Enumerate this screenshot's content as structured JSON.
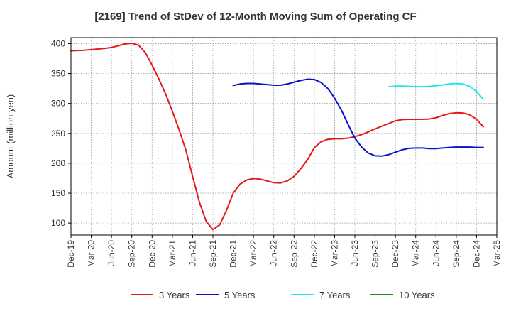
{
  "chart_data": {
    "type": "line",
    "title": "[2169]  Trend of StDev of 12-Month Moving Sum of Operating CF",
    "ylabel": "Amount (million yen)",
    "xlabel": "",
    "ylim": [
      80,
      410
    ],
    "yticks": [
      100,
      150,
      200,
      250,
      300,
      350,
      400
    ],
    "x_tick_labels": [
      "Dec-19",
      "Mar-20",
      "Jun-20",
      "Sep-20",
      "Dec-20",
      "Mar-21",
      "Jun-21",
      "Sep-21",
      "Dec-21",
      "Mar-22",
      "Jun-22",
      "Sep-22",
      "Dec-22",
      "Mar-23",
      "Jun-23",
      "Sep-23",
      "Dec-23",
      "Mar-24",
      "Jun-24",
      "Sep-24",
      "Dec-24",
      "Mar-25"
    ],
    "grid": true,
    "legend_position": "bottom",
    "series": [
      {
        "name": "3 Years",
        "color": "#e31a1c",
        "points": [
          [
            "Dec-19",
            388
          ],
          [
            "Jan-20",
            388.5
          ],
          [
            "Feb-20",
            389
          ],
          [
            "Mar-20",
            390
          ],
          [
            "Apr-20",
            391
          ],
          [
            "May-20",
            392
          ],
          [
            "Jun-20",
            393.5
          ],
          [
            "Jul-20",
            396.5
          ],
          [
            "Aug-20",
            399.5
          ],
          [
            "Sep-20",
            400.5
          ],
          [
            "Oct-20",
            397.5
          ],
          [
            "Nov-20",
            385
          ],
          [
            "Dec-20",
            364
          ],
          [
            "Jan-21",
            341
          ],
          [
            "Feb-21",
            316
          ],
          [
            "Mar-21",
            287
          ],
          [
            "Apr-21",
            256
          ],
          [
            "May-21",
            222
          ],
          [
            "Jun-21",
            178
          ],
          [
            "Jul-21",
            135
          ],
          [
            "Aug-21",
            103
          ],
          [
            "Sep-21",
            89
          ],
          [
            "Oct-21",
            97
          ],
          [
            "Nov-21",
            121
          ],
          [
            "Dec-21",
            150
          ],
          [
            "Jan-22",
            165
          ],
          [
            "Feb-22",
            172
          ],
          [
            "Mar-22",
            174.5
          ],
          [
            "Apr-22",
            173.5
          ],
          [
            "May-22",
            170.5
          ],
          [
            "Jun-22",
            167.5
          ],
          [
            "Jul-22",
            167
          ],
          [
            "Aug-22",
            170.5
          ],
          [
            "Sep-22",
            178
          ],
          [
            "Oct-22",
            191
          ],
          [
            "Nov-22",
            206
          ],
          [
            "Dec-22",
            226
          ],
          [
            "Jan-23",
            236
          ],
          [
            "Feb-23",
            240
          ],
          [
            "Mar-23",
            241
          ],
          [
            "Apr-23",
            241
          ],
          [
            "May-23",
            242
          ],
          [
            "Jun-23",
            244.5
          ],
          [
            "Jul-23",
            248
          ],
          [
            "Aug-23",
            252.5
          ],
          [
            "Sep-23",
            257.5
          ],
          [
            "Oct-23",
            262
          ],
          [
            "Nov-23",
            266.5
          ],
          [
            "Dec-23",
            271
          ],
          [
            "Jan-24",
            273
          ],
          [
            "Feb-24",
            273.5
          ],
          [
            "Mar-24",
            273.5
          ],
          [
            "Apr-24",
            273.5
          ],
          [
            "May-24",
            274
          ],
          [
            "Jun-24",
            276
          ],
          [
            "Jul-24",
            280
          ],
          [
            "Aug-24",
            283
          ],
          [
            "Sep-24",
            284.5
          ],
          [
            "Oct-24",
            284
          ],
          [
            "Nov-24",
            281
          ],
          [
            "Dec-24",
            273.5
          ],
          [
            "Jan-25",
            261
          ]
        ]
      },
      {
        "name": "5 Years",
        "color": "#0a12c8",
        "points": [
          [
            "Dec-21",
            330
          ],
          [
            "Jan-22",
            332.5
          ],
          [
            "Feb-22",
            333.5
          ],
          [
            "Mar-22",
            333.5
          ],
          [
            "Apr-22",
            332.5
          ],
          [
            "May-22",
            331.5
          ],
          [
            "Jun-22",
            330.5
          ],
          [
            "Jul-22",
            330.5
          ],
          [
            "Aug-22",
            332.5
          ],
          [
            "Sep-22",
            335.5
          ],
          [
            "Oct-22",
            338.5
          ],
          [
            "Nov-22",
            340.5
          ],
          [
            "Dec-22",
            340
          ],
          [
            "Jan-23",
            335
          ],
          [
            "Feb-23",
            325
          ],
          [
            "Mar-23",
            309
          ],
          [
            "Apr-23",
            289
          ],
          [
            "May-23",
            265
          ],
          [
            "Jun-23",
            242
          ],
          [
            "Jul-23",
            227
          ],
          [
            "Aug-23",
            217
          ],
          [
            "Sep-23",
            212.5
          ],
          [
            "Oct-23",
            212
          ],
          [
            "Nov-23",
            214.5
          ],
          [
            "Dec-23",
            218.5
          ],
          [
            "Jan-24",
            222.5
          ],
          [
            "Feb-24",
            225
          ],
          [
            "Mar-24",
            225.5
          ],
          [
            "Apr-24",
            225.5
          ],
          [
            "May-24",
            224.5
          ],
          [
            "Jun-24",
            224.5
          ],
          [
            "Jul-24",
            225.5
          ],
          [
            "Aug-24",
            226.5
          ],
          [
            "Sep-24",
            227
          ],
          [
            "Oct-24",
            227
          ],
          [
            "Nov-24",
            227
          ],
          [
            "Dec-24",
            226.5
          ],
          [
            "Jan-25",
            226.5
          ]
        ]
      },
      {
        "name": "7 Years",
        "color": "#22e6e6",
        "points": [
          [
            "Nov-23",
            328
          ],
          [
            "Dec-23",
            329
          ],
          [
            "Jan-24",
            329
          ],
          [
            "Feb-24",
            328.5
          ],
          [
            "Mar-24",
            328
          ],
          [
            "Apr-24",
            328
          ],
          [
            "May-24",
            328.5
          ],
          [
            "Jun-24",
            329.5
          ],
          [
            "Jul-24",
            331
          ],
          [
            "Aug-24",
            332.5
          ],
          [
            "Sep-24",
            333.5
          ],
          [
            "Oct-24",
            332.5
          ],
          [
            "Nov-24",
            328.5
          ],
          [
            "Dec-24",
            320
          ],
          [
            "Jan-25",
            307
          ]
        ]
      },
      {
        "name": "10 Years",
        "color": "#1a8a1a",
        "points": []
      }
    ]
  }
}
